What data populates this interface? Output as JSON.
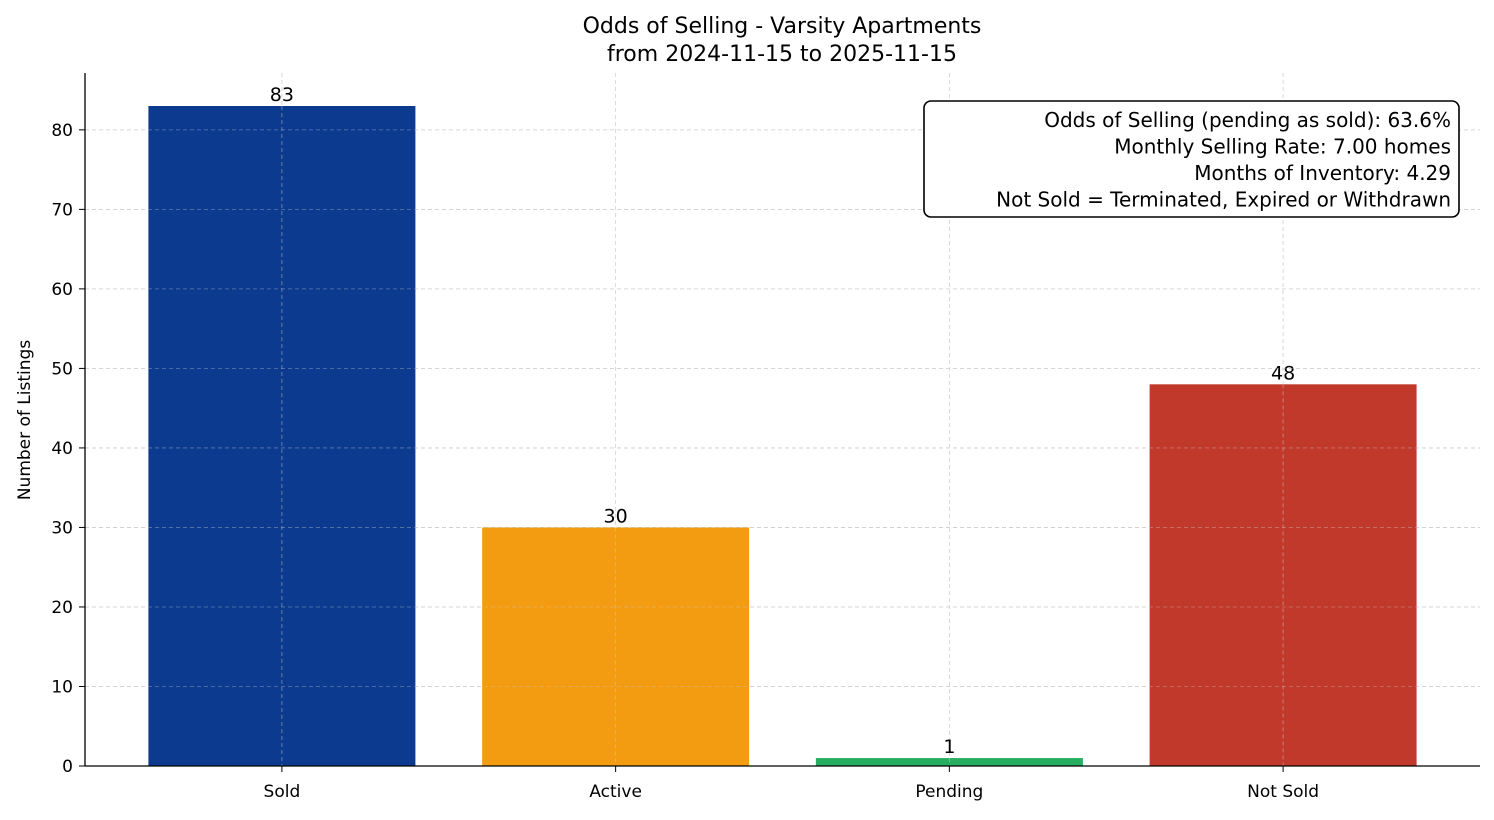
{
  "chart_data": {
    "type": "bar",
    "title": "Odds of Selling - Varsity Apartments",
    "subtitle": "from 2024-11-15 to 2025-11-15",
    "xlabel": "",
    "ylabel": "Number of Listings",
    "categories": [
      "Sold",
      "Active",
      "Pending",
      "Not Sold"
    ],
    "values": [
      83,
      30,
      1,
      48
    ],
    "data_labels": [
      "83",
      "30",
      "1",
      "48"
    ],
    "colors": [
      "#0b3a8f",
      "#f39c12",
      "#27ae60",
      "#c0392b"
    ],
    "ylim": [
      0,
      87.15
    ],
    "yticks": [
      0,
      10,
      20,
      30,
      40,
      50,
      60,
      70,
      80
    ],
    "grid": true,
    "annotation": {
      "placement": "top-right",
      "lines": [
        "Odds of Selling (pending as sold): 63.6%",
        "Monthly Selling Rate: 7.00 homes",
        "Months of Inventory: 4.29",
        "Not Sold = Terminated, Expired or Withdrawn"
      ]
    }
  }
}
